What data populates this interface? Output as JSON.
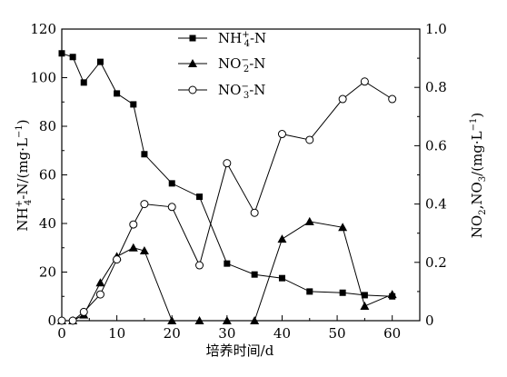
{
  "chart_data": {
    "type": "line",
    "xlabel": "培养时间/d",
    "ylabel_left": "NH4+-N/(mg·L−1)",
    "ylabel_right": "NO2−,NO3−/(mg·L−1)",
    "xlim": [
      0,
      65
    ],
    "ylim_left": [
      0,
      120
    ],
    "ylim_right": [
      0,
      1.0
    ],
    "x_ticks": [
      0,
      10,
      20,
      30,
      40,
      50,
      60
    ],
    "y_ticks_left": [
      0,
      20,
      40,
      60,
      80,
      100,
      120
    ],
    "y_ticks_right": [
      0,
      0.2,
      0.4,
      0.6,
      0.8,
      1.0
    ],
    "x_tick_labels": [
      "0",
      "10",
      "20",
      "30",
      "40",
      "50",
      "60"
    ],
    "y_tick_labels_left": [
      "0",
      "20",
      "40",
      "60",
      "80",
      "100",
      "120"
    ],
    "y_tick_labels_right": [
      "0",
      "0.2",
      "0.4",
      "0.6",
      "0.8",
      "1.0"
    ],
    "legend_position": "top-center",
    "grid": false,
    "series": [
      {
        "name": "NH4+-N",
        "axis": "left",
        "marker": "filled-square",
        "x": [
          0,
          2,
          4,
          7,
          10,
          13,
          15,
          20,
          25,
          30,
          35,
          40,
          45,
          51,
          55,
          60
        ],
        "values": [
          110,
          108.5,
          98,
          106.5,
          93.5,
          89,
          68.5,
          56.5,
          51,
          23.5,
          19,
          17.5,
          12,
          11.5,
          10.5,
          10
        ]
      },
      {
        "name": "NO2−-N",
        "axis": "right",
        "marker": "filled-triangle",
        "x": [
          0,
          2,
          4,
          7,
          10,
          13,
          15,
          20,
          25,
          30,
          35,
          40,
          45,
          51,
          55,
          60
        ],
        "values": [
          0,
          0,
          0.02,
          0.13,
          0.22,
          0.25,
          0.24,
          0,
          0,
          0,
          0,
          0.28,
          0.34,
          0.32,
          0.05,
          0.09
        ]
      },
      {
        "name": "NO3−-N",
        "axis": "right",
        "marker": "open-circle",
        "x": [
          0,
          2,
          4,
          7,
          10,
          13,
          15,
          20,
          25,
          30,
          35,
          40,
          45,
          51,
          55,
          60
        ],
        "values": [
          0,
          0,
          0.03,
          0.09,
          0.21,
          0.33,
          0.4,
          0.39,
          0.19,
          0.54,
          0.37,
          0.64,
          0.62,
          0.76,
          0.82,
          0.76
        ]
      }
    ]
  },
  "colors": {
    "axis": "#000000",
    "line": "#000000",
    "open_marker_fill": "#ffffff"
  }
}
